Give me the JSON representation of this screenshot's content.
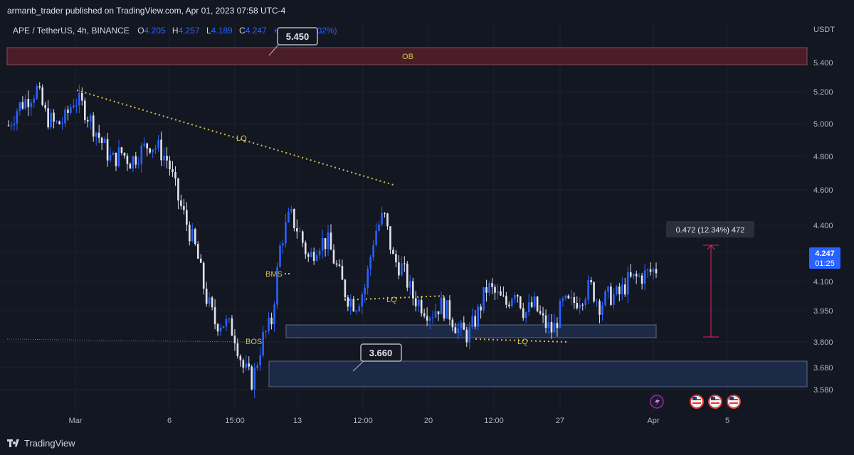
{
  "header": {
    "published": "armanb_trader published on TradingView.com, Apr 01, 2023 07:58 UTC-4"
  },
  "legend": {
    "symbol": "APE / TetherUS, 4h, BINANCE",
    "o_label": "O",
    "o": "4.205",
    "h_label": "H",
    "h": "4.257",
    "l_label": "L",
    "l": "4.189",
    "c_label": "C",
    "c": "4.247",
    "change": "+0.043 (+1.02%)"
  },
  "price_axis": {
    "currency": "USDT",
    "ticks": [
      "5.400",
      "5.200",
      "5.000",
      "4.800",
      "4.600",
      "4.400",
      "4.250",
      "4.100",
      "3.950",
      "3.800",
      "3.680",
      "3.580"
    ]
  },
  "time_axis": {
    "ticks": [
      "Mar",
      "6",
      "15:00",
      "13",
      "12:00",
      "20",
      "12:00",
      "27",
      "Apr",
      "5"
    ]
  },
  "annotations": {
    "ob": "OB",
    "lq_top": "LQ",
    "lq_mid": "LQ",
    "lq_low": "LQ",
    "bms": "BMS",
    "bos": "BOS",
    "callout_top": "5.450",
    "callout_bottom": "3.660",
    "measure": "0.472 (12.34%) 472",
    "current_price": "4.247",
    "countdown": "01:25"
  },
  "footer": {
    "brand": "TradingView"
  },
  "colors": {
    "background": "#131722",
    "candle": "#2962ff",
    "candle_light": "#e0e3eb",
    "ob_zone": "#4a1d28",
    "demand_zone": "#1a2a4a",
    "annotation_yellow": "#d4c14a",
    "measure_pink": "#e91e63"
  },
  "chart_data": {
    "type": "candlestick",
    "title": "APE / TetherUS, 4h, BINANCE",
    "ylim": [
      3.55,
      5.52
    ],
    "x_ticks": [
      "Mar",
      "6",
      "15:00",
      "13",
      "12:00",
      "20",
      "12:00",
      "27",
      "Apr",
      "5"
    ],
    "close_path": [
      5.05,
      5.15,
      5.2,
      5.25,
      5.1,
      5.05,
      5.08,
      5.2,
      5.15,
      5.05,
      4.95,
      4.85,
      4.9,
      4.85,
      4.9,
      4.95,
      4.92,
      4.85,
      4.65,
      4.5,
      4.35,
      4.1,
      3.95,
      3.95,
      3.9,
      3.7,
      3.62,
      3.85,
      3.95,
      4.4,
      4.55,
      4.45,
      4.3,
      4.4,
      4.4,
      4.25,
      4.1,
      4.05,
      4.15,
      4.45,
      4.55,
      4.3,
      4.25,
      4.1,
      4.05,
      4.0,
      4.05,
      4.0,
      3.9,
      3.88,
      4.0,
      4.15,
      4.1,
      4.05,
      4.15,
      4.0,
      4.05,
      3.95,
      3.9,
      4.05,
      4.05,
      4.1,
      4.15,
      4.05,
      4.1,
      4.1,
      4.18,
      4.2,
      4.22,
      4.25
    ],
    "ob_zone": [
      5.39,
      5.49
    ],
    "demand_zone_upper": [
      3.82,
      3.88
    ],
    "demand_zone_lower": [
      3.6,
      3.7
    ],
    "bms_level": 4.18,
    "bos_level": 3.81,
    "measure": {
      "from": 3.81,
      "to": 4.28,
      "label": "0.472 (12.34%) 472"
    },
    "current_price": 4.247
  }
}
